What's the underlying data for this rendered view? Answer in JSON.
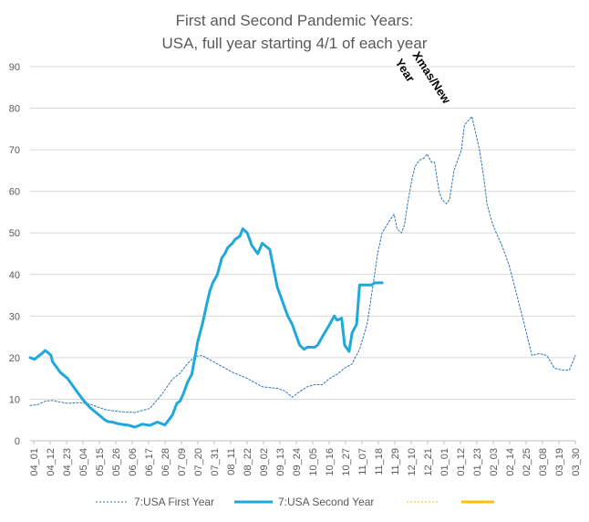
{
  "chart_data": {
    "type": "line",
    "title": [
      "First and Second Pandemic Years:",
      "USA, full year starting 4/1 of each year"
    ],
    "ylim": [
      0,
      90
    ],
    "yticks": [
      0,
      10,
      20,
      30,
      40,
      50,
      60,
      70,
      80,
      90
    ],
    "grid": true,
    "legend_position": "bottom",
    "x_tick_labels": [
      "04_01",
      "04_12",
      "04_23",
      "05_04",
      "05_15",
      "05_26",
      "06_06",
      "06_17",
      "06_28",
      "07_09",
      "07_20",
      "07_31",
      "08_11",
      "08_22",
      "09_02",
      "09_13",
      "09_24",
      "10_05",
      "10_16",
      "10_27",
      "11_07",
      "11_18",
      "11_29",
      "12_10",
      "12_21",
      "01_01",
      "01_12",
      "01_23",
      "02_03",
      "02_14",
      "02_25",
      "03_08",
      "03_19",
      "03_30"
    ],
    "annotation": [
      "Xmas/New",
      "Year"
    ],
    "series": [
      {
        "name": "7:USA First Year",
        "color": "#2e75b6",
        "style": "dotted",
        "x": [
          0,
          5,
          10,
          15,
          20,
          25,
          33,
          40,
          50,
          60,
          70,
          80,
          88,
          95,
          100,
          105,
          110,
          115,
          125,
          135,
          145,
          155,
          160,
          165,
          170,
          175,
          180,
          185,
          190,
          195,
          200,
          205,
          210,
          215,
          217,
          220,
          225,
          230,
          232,
          235,
          240,
          243,
          245,
          248,
          250,
          252,
          255,
          257,
          260,
          263,
          265,
          268,
          270,
          273,
          275,
          278,
          280,
          283,
          285,
          288,
          290,
          295,
          300,
          303,
          305,
          308,
          310,
          315,
          320,
          325,
          330,
          335,
          340,
          345,
          350,
          355,
          360,
          364
        ],
        "values": [
          8.5,
          8.7,
          9.5,
          9.7,
          9.3,
          9.0,
          9.2,
          8.8,
          7.5,
          7,
          6.8,
          7.8,
          11.2,
          14.8,
          16.2,
          18.5,
          20.3,
          20.5,
          18.5,
          16.5,
          15,
          13,
          12.8,
          12.6,
          12,
          10.5,
          11.8,
          13,
          13.5,
          13.5,
          15,
          16,
          17.5,
          18.5,
          20,
          22,
          28,
          40,
          45,
          50,
          53,
          54.5,
          51,
          50,
          52,
          57,
          63,
          66,
          67.5,
          68,
          69,
          67,
          67,
          60,
          58,
          57,
          58,
          65,
          67,
          70,
          76,
          78,
          70,
          63,
          57,
          53,
          51,
          47,
          42,
          35,
          28,
          20.5,
          21,
          20.5,
          17.5,
          17,
          17,
          20.5
        ]
      },
      {
        "name": "7:USA Second Year",
        "color": "#1fa8dc",
        "style": "solid",
        "x": [
          0,
          3,
          5,
          8,
          10,
          12,
          14,
          15,
          20,
          25,
          30,
          35,
          40,
          45,
          50,
          52,
          55,
          60,
          65,
          70,
          75,
          80,
          85,
          90,
          95,
          98,
          100,
          102,
          105,
          108,
          110,
          112,
          115,
          118,
          120,
          122,
          125,
          128,
          130,
          132,
          135,
          137,
          140,
          142,
          145,
          148,
          150,
          152,
          155,
          160,
          165,
          170,
          172,
          175,
          178,
          180,
          183,
          185,
          188,
          190,
          192,
          195,
          200,
          203,
          205,
          208,
          210,
          213,
          215,
          218,
          220,
          225,
          228,
          230,
          233,
          235
        ],
        "values": [
          20,
          19.6,
          20.2,
          21,
          21.7,
          21.2,
          20.5,
          19,
          16.5,
          15,
          12.5,
          10,
          8,
          6.5,
          5,
          4.6,
          4.5,
          4,
          3.8,
          3.3,
          4,
          3.7,
          4.5,
          3.8,
          6.2,
          9,
          9.5,
          11,
          14,
          16,
          20,
          24,
          28,
          33,
          36,
          38,
          40,
          44,
          45,
          46.5,
          47.5,
          48.5,
          49.2,
          51,
          50,
          47,
          46,
          45,
          47.5,
          46,
          37,
          32,
          30,
          28,
          25,
          23,
          22,
          22.5,
          22.5,
          22.5,
          23,
          25,
          28,
          30,
          29,
          29.5,
          23,
          21.5,
          26,
          28,
          37.5,
          37.5,
          37.5,
          38,
          38,
          38
        ]
      },
      {
        "name": "",
        "color": "#ffc000",
        "style": "dotted",
        "x": [],
        "values": []
      },
      {
        "name": "",
        "color": "#ffc000",
        "style": "solid",
        "x": [],
        "values": []
      }
    ]
  }
}
